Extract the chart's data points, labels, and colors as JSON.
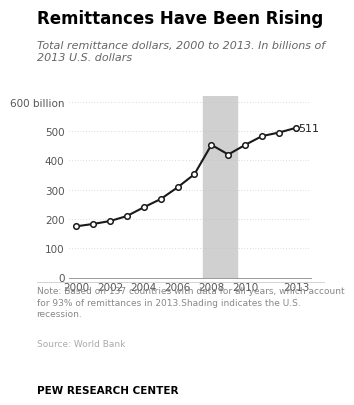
{
  "title": "Remittances Have Been Rising",
  "subtitle": "Total remittance dollars, 2000 to 2013. In billions of\n2013 U.S. dollars",
  "data_points_x": [
    2000,
    2001,
    2002,
    2003,
    2004,
    2005,
    2006,
    2007,
    2008,
    2009,
    2010,
    2011,
    2012,
    2013
  ],
  "data_points_y": [
    175,
    183,
    193,
    210,
    240,
    268,
    308,
    353,
    453,
    420,
    453,
    483,
    495,
    511
  ],
  "recession_start": 2007.5,
  "recession_end": 2009.5,
  "recession_color": "#d0d0d0",
  "line_color": "#1a1a1a",
  "marker_facecolor": "white",
  "marker_edgecolor": "#1a1a1a",
  "ylim": [
    0,
    620
  ],
  "yticks": [
    0,
    100,
    200,
    300,
    400,
    500,
    600
  ],
  "ytick_labels": [
    "0",
    "100",
    "200",
    "300",
    "400",
    "500",
    "600 billion"
  ],
  "xticks": [
    2000,
    2002,
    2004,
    2006,
    2008,
    2010,
    2013
  ],
  "note_text": "Note: Based on 137 countries with data for all years, which account\nfor 93% of remittances in 2013.Shading indicates the U.S.\nrecession.",
  "source_text": "Source: World Bank",
  "footer_text": "PEW RESEARCH CENTER",
  "bg_color": "#ffffff",
  "label_511": "511",
  "title_color": "#000000",
  "subtitle_color": "#666666",
  "note_color": "#888888",
  "source_color": "#aaaaaa",
  "footer_color": "#000000",
  "grid_color": "#bbbbbb",
  "title_fontsize": 12,
  "subtitle_fontsize": 8,
  "tick_fontsize": 7.5,
  "note_fontsize": 6.5,
  "source_fontsize": 6.5,
  "footer_fontsize": 7.5
}
